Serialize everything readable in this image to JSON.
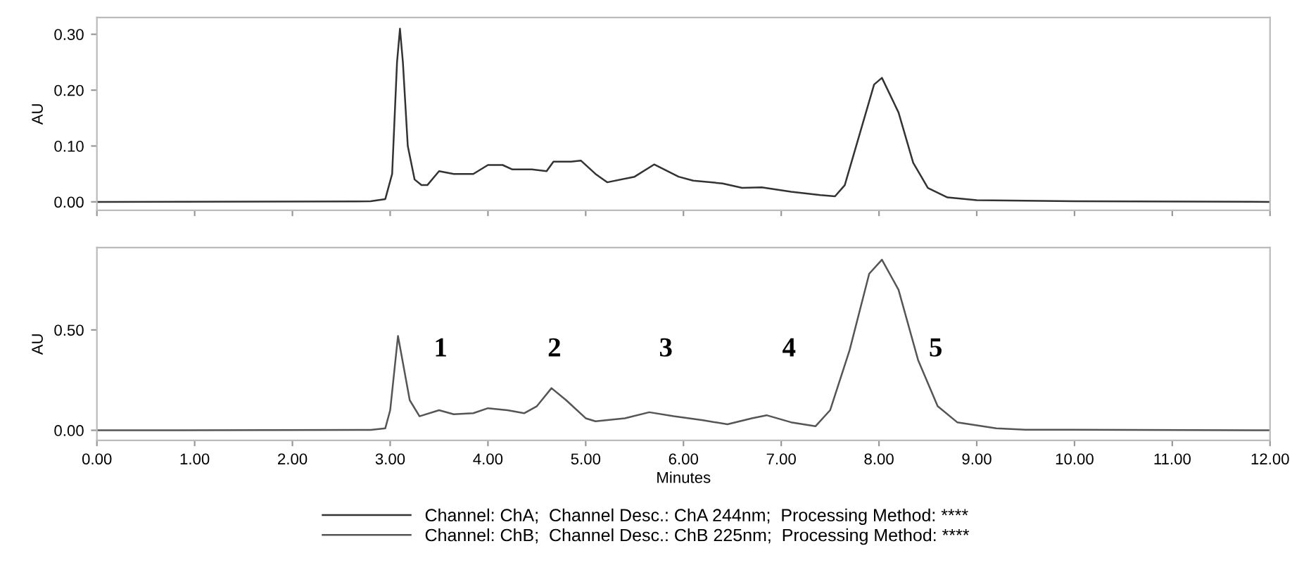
{
  "chart_data": [
    {
      "type": "line",
      "ylabel": "AU",
      "xlim": [
        0,
        12
      ],
      "ylim": [
        -0.015,
        0.33
      ],
      "yticks": [
        {
          "value": 0,
          "label": "0.00"
        },
        {
          "value": 0.1,
          "label": "0.10"
        },
        {
          "value": 0.2,
          "label": "0.20"
        },
        {
          "value": 0.3,
          "label": "0.30"
        }
      ],
      "tick_labels": "y",
      "legend": "bottom",
      "grid": false,
      "series": [
        {
          "name": "Channel: ChA;  Channel Desc.: ChA 244nm;  Processing Method: ****",
          "color": "#333333",
          "x": [
            0,
            2.8,
            2.95,
            3.02,
            3.07,
            3.1,
            3.13,
            3.18,
            3.25,
            3.32,
            3.38,
            3.5,
            3.65,
            3.85,
            4.0,
            4.15,
            4.25,
            4.45,
            4.6,
            4.67,
            4.85,
            4.95,
            5.1,
            5.22,
            5.5,
            5.7,
            5.95,
            6.1,
            6.4,
            6.6,
            6.8,
            7.1,
            7.4,
            7.55,
            7.65,
            7.8,
            7.95,
            8.03,
            8.2,
            8.35,
            8.5,
            8.7,
            9.0,
            10,
            12
          ],
          "values": [
            0,
            0.001,
            0.005,
            0.05,
            0.25,
            0.31,
            0.25,
            0.1,
            0.04,
            0.03,
            0.03,
            0.055,
            0.05,
            0.05,
            0.066,
            0.066,
            0.058,
            0.058,
            0.055,
            0.072,
            0.072,
            0.074,
            0.05,
            0.035,
            0.045,
            0.067,
            0.045,
            0.038,
            0.033,
            0.025,
            0.026,
            0.018,
            0.012,
            0.01,
            0.03,
            0.12,
            0.21,
            0.222,
            0.16,
            0.07,
            0.025,
            0.008,
            0.003,
            0.001,
            0
          ]
        }
      ]
    },
    {
      "type": "line",
      "xlabel": "Minutes",
      "ylabel": "AU",
      "xlim": [
        0,
        12
      ],
      "ylim": [
        -0.05,
        0.91
      ],
      "xticks": [
        {
          "value": 0,
          "label": "0.00"
        },
        {
          "value": 1,
          "label": "1.00"
        },
        {
          "value": 2,
          "label": "2.00"
        },
        {
          "value": 3,
          "label": "3.00"
        },
        {
          "value": 4,
          "label": "4.00"
        },
        {
          "value": 5,
          "label": "5.00"
        },
        {
          "value": 6,
          "label": "6.00"
        },
        {
          "value": 7,
          "label": "7.00"
        },
        {
          "value": 8,
          "label": "8.00"
        },
        {
          "value": 9,
          "label": "9.00"
        },
        {
          "value": 10,
          "label": "10.00"
        },
        {
          "value": 11,
          "label": "11.00"
        },
        {
          "value": 12,
          "label": "12.00"
        }
      ],
      "yticks": [
        {
          "value": 0,
          "label": "0.00"
        },
        {
          "value": 0.5,
          "label": "0.50"
        }
      ],
      "legend": "bottom",
      "grid": false,
      "annotations": [
        "1",
        "2",
        "3",
        "4",
        "5"
      ],
      "series": [
        {
          "name": "Channel: ChB;  Channel Desc.: ChB 225nm;  Processing Method: ****",
          "color": "#555555",
          "x": [
            0,
            2.8,
            2.95,
            3.0,
            3.08,
            3.2,
            3.3,
            3.5,
            3.65,
            3.85,
            4.0,
            4.2,
            4.37,
            4.5,
            4.65,
            4.8,
            5.0,
            5.1,
            5.4,
            5.65,
            5.9,
            6.2,
            6.45,
            6.7,
            6.85,
            7.1,
            7.35,
            7.5,
            7.7,
            7.9,
            8.03,
            8.2,
            8.4,
            8.6,
            8.8,
            9.2,
            9.5,
            12
          ],
          "values": [
            0,
            0.002,
            0.01,
            0.1,
            0.47,
            0.15,
            0.07,
            0.1,
            0.08,
            0.085,
            0.11,
            0.1,
            0.085,
            0.12,
            0.21,
            0.15,
            0.06,
            0.045,
            0.06,
            0.09,
            0.07,
            0.05,
            0.03,
            0.06,
            0.075,
            0.04,
            0.02,
            0.1,
            0.4,
            0.78,
            0.85,
            0.7,
            0.35,
            0.12,
            0.04,
            0.01,
            0.003,
            0
          ]
        }
      ]
    }
  ]
}
